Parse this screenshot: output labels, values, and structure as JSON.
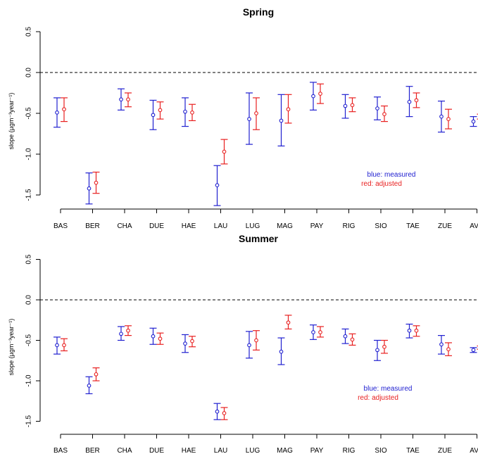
{
  "colors": {
    "measured": "#2020d0",
    "adjusted": "#e82020",
    "reference": "#000000"
  },
  "chart_data": [
    {
      "type": "errorbar",
      "title": "Spring",
      "ylabel": "slope (µgm⁻³year⁻¹)",
      "ylim": [
        -1.7,
        0.5
      ],
      "yticks": [
        0.5,
        0.0,
        -0.5,
        -1.0,
        -1.5
      ],
      "ytick_labels": [
        "0.5",
        "0.0",
        "-0.5",
        "-1.0",
        "-1.5"
      ],
      "reference_line": 0,
      "categories": [
        "BAS",
        "BER",
        "CHA",
        "DUE",
        "HAE",
        "LAU",
        "LUG",
        "MAG",
        "PAY",
        "RIG",
        "SIO",
        "TAE",
        "ZUE",
        "AVG"
      ],
      "legend": {
        "position": "right",
        "measured": "blue: measured",
        "adjusted": "red: adjusted"
      },
      "series": [
        {
          "name": "measured",
          "color_key": "measured",
          "values": [
            -0.49,
            -1.42,
            -0.33,
            -0.52,
            -0.48,
            -1.38,
            -0.57,
            -0.59,
            -0.29,
            -0.41,
            -0.44,
            -0.36,
            -0.54,
            -0.6
          ],
          "lower": [
            -0.67,
            -1.61,
            -0.46,
            -0.7,
            -0.66,
            -1.63,
            -0.88,
            -0.9,
            -0.46,
            -0.56,
            -0.58,
            -0.54,
            -0.73,
            -0.66
          ],
          "upper": [
            -0.31,
            -1.23,
            -0.2,
            -0.34,
            -0.31,
            -1.14,
            -0.25,
            -0.27,
            -0.12,
            -0.27,
            -0.3,
            -0.17,
            -0.35,
            -0.54
          ]
        },
        {
          "name": "adjusted",
          "color_key": "adjusted",
          "values": [
            -0.45,
            -1.35,
            -0.33,
            -0.46,
            -0.49,
            -0.97,
            -0.5,
            -0.45,
            -0.26,
            -0.4,
            -0.51,
            -0.34,
            -0.57,
            -0.54
          ],
          "lower": [
            -0.6,
            -1.48,
            -0.42,
            -0.57,
            -0.59,
            -1.12,
            -0.7,
            -0.62,
            -0.38,
            -0.48,
            -0.6,
            -0.43,
            -0.69,
            -0.57
          ],
          "upper": [
            -0.31,
            -1.22,
            -0.25,
            -0.36,
            -0.39,
            -0.82,
            -0.31,
            -0.27,
            -0.14,
            -0.31,
            -0.41,
            -0.25,
            -0.45,
            -0.51
          ]
        }
      ]
    },
    {
      "type": "errorbar",
      "title": "Summer",
      "ylabel": "slope (µgm⁻³year⁻¹)",
      "ylim": [
        -1.65,
        0.5
      ],
      "yticks": [
        0.5,
        0.0,
        -0.5,
        -1.0,
        -1.5
      ],
      "ytick_labels": [
        "0.5",
        "0.0",
        "-0.5",
        "-1.0",
        "-1.5"
      ],
      "reference_line": 0,
      "categories": [
        "BAS",
        "BER",
        "CHA",
        "DUE",
        "HAE",
        "LAU",
        "LUG",
        "MAG",
        "PAY",
        "RIG",
        "SIO",
        "TAE",
        "ZUE",
        "AVG"
      ],
      "legend": {
        "position": "right",
        "measured": "blue: measured",
        "adjusted": "red: adjusted"
      },
      "series": [
        {
          "name": "measured",
          "color_key": "measured",
          "values": [
            -0.56,
            -1.06,
            -0.42,
            -0.45,
            -0.54,
            -1.38,
            -0.56,
            -0.64,
            -0.4,
            -0.45,
            -0.62,
            -0.38,
            -0.55,
            -0.62
          ],
          "lower": [
            -0.67,
            -1.16,
            -0.5,
            -0.55,
            -0.65,
            -1.48,
            -0.72,
            -0.8,
            -0.49,
            -0.54,
            -0.75,
            -0.47,
            -0.67,
            -0.65
          ],
          "upper": [
            -0.46,
            -0.95,
            -0.33,
            -0.35,
            -0.43,
            -1.28,
            -0.39,
            -0.47,
            -0.31,
            -0.36,
            -0.5,
            -0.3,
            -0.44,
            -0.59
          ]
        },
        {
          "name": "adjusted",
          "color_key": "adjusted",
          "values": [
            -0.56,
            -0.92,
            -0.38,
            -0.48,
            -0.51,
            -1.4,
            -0.5,
            -0.28,
            -0.4,
            -0.49,
            -0.58,
            -0.38,
            -0.61,
            -0.59
          ],
          "lower": [
            -0.63,
            -1.0,
            -0.44,
            -0.55,
            -0.58,
            -1.48,
            -0.62,
            -0.36,
            -0.46,
            -0.56,
            -0.66,
            -0.45,
            -0.69,
            -0.61
          ],
          "upper": [
            -0.48,
            -0.84,
            -0.32,
            -0.41,
            -0.45,
            -1.33,
            -0.38,
            -0.19,
            -0.33,
            -0.42,
            -0.5,
            -0.32,
            -0.53,
            -0.57
          ]
        }
      ]
    }
  ]
}
